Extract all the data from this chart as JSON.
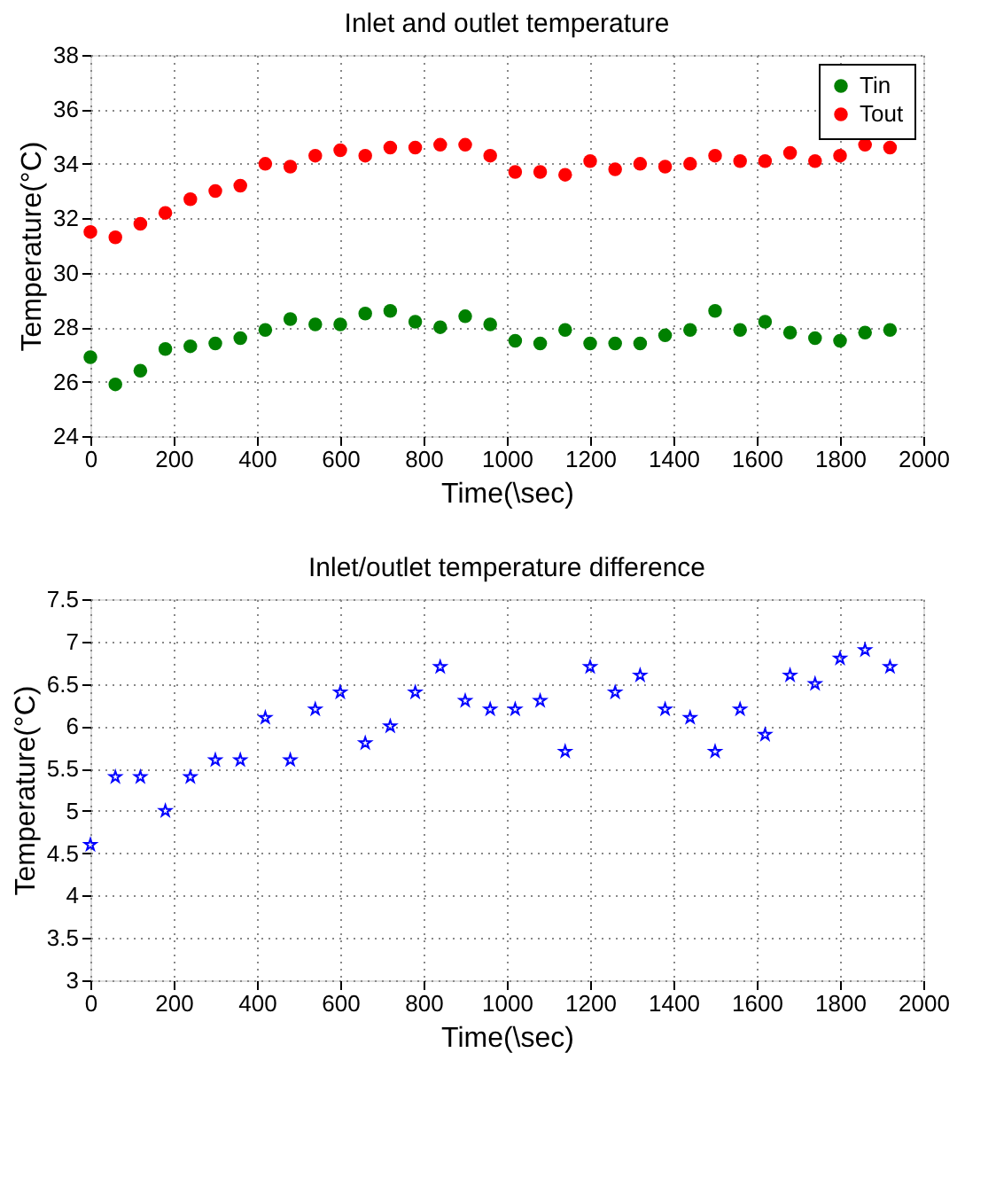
{
  "chart_data": [
    {
      "type": "scatter",
      "title": "Inlet and outlet temperature",
      "xlabel": "Time(\\sec)",
      "ylabel": "Temperature(°C)",
      "x": [
        0,
        60,
        120,
        180,
        240,
        300,
        360,
        420,
        480,
        540,
        600,
        660,
        720,
        780,
        840,
        900,
        960,
        1020,
        1080,
        1140,
        1200,
        1260,
        1320,
        1380,
        1440,
        1500,
        1560,
        1620,
        1680,
        1740,
        1800,
        1860,
        1920
      ],
      "series": [
        {
          "name": "Tin",
          "color": "#008000",
          "values": [
            26.9,
            25.9,
            26.4,
            27.2,
            27.3,
            27.4,
            27.6,
            27.9,
            28.3,
            28.1,
            28.1,
            28.5,
            28.6,
            28.2,
            28.0,
            28.4,
            28.1,
            27.5,
            27.4,
            27.9,
            27.4,
            27.4,
            27.4,
            27.7,
            27.9,
            28.6,
            27.9,
            28.2,
            27.8,
            27.6,
            27.5,
            27.8,
            27.9
          ]
        },
        {
          "name": "Tout",
          "color": "#ff0000",
          "values": [
            31.5,
            31.3,
            31.8,
            32.2,
            32.7,
            33.0,
            33.2,
            34.0,
            33.9,
            34.3,
            34.5,
            34.3,
            34.6,
            34.6,
            34.7,
            34.7,
            34.3,
            33.7,
            33.7,
            33.6,
            34.1,
            33.8,
            34.0,
            33.9,
            34.0,
            34.3,
            34.1,
            34.1,
            34.4,
            34.1,
            34.3,
            34.7,
            34.6
          ]
        }
      ],
      "xlim": [
        0,
        2000
      ],
      "xticks": [
        0,
        200,
        400,
        600,
        800,
        1000,
        1200,
        1400,
        1600,
        1800,
        2000
      ],
      "ylim": [
        24,
        38
      ],
      "yticks": [
        24,
        26,
        28,
        30,
        32,
        34,
        36,
        38
      ],
      "grid": true,
      "legend": "top right",
      "marker": "circle"
    },
    {
      "type": "scatter",
      "title": "Inlet/outlet temperature difference",
      "xlabel": "Time(\\sec)",
      "ylabel": "Temperature(°C)",
      "x": [
        0,
        60,
        120,
        180,
        240,
        300,
        360,
        420,
        480,
        540,
        600,
        660,
        720,
        780,
        840,
        900,
        960,
        1020,
        1080,
        1140,
        1200,
        1260,
        1320,
        1380,
        1440,
        1500,
        1560,
        1620,
        1680,
        1740,
        1800,
        1860,
        1920
      ],
      "series": [
        {
          "color": "#0000ff",
          "values": [
            4.6,
            5.4,
            5.4,
            5.0,
            5.4,
            5.6,
            5.6,
            6.1,
            5.6,
            6.2,
            6.4,
            5.8,
            6.0,
            6.4,
            6.7,
            6.3,
            6.2,
            6.2,
            6.3,
            5.7,
            6.7,
            6.4,
            6.6,
            6.2,
            6.1,
            5.7,
            6.2,
            5.9,
            6.6,
            6.5,
            6.8,
            6.9,
            6.7
          ]
        }
      ],
      "xlim": [
        0,
        2000
      ],
      "xticks": [
        0,
        200,
        400,
        600,
        800,
        1000,
        1200,
        1400,
        1600,
        1800,
        2000
      ],
      "ylim": [
        3,
        7.5
      ],
      "yticks": [
        3,
        3.5,
        4,
        4.5,
        5,
        5.5,
        6,
        6.5,
        7,
        7.5
      ],
      "grid": true,
      "marker": "star"
    }
  ]
}
